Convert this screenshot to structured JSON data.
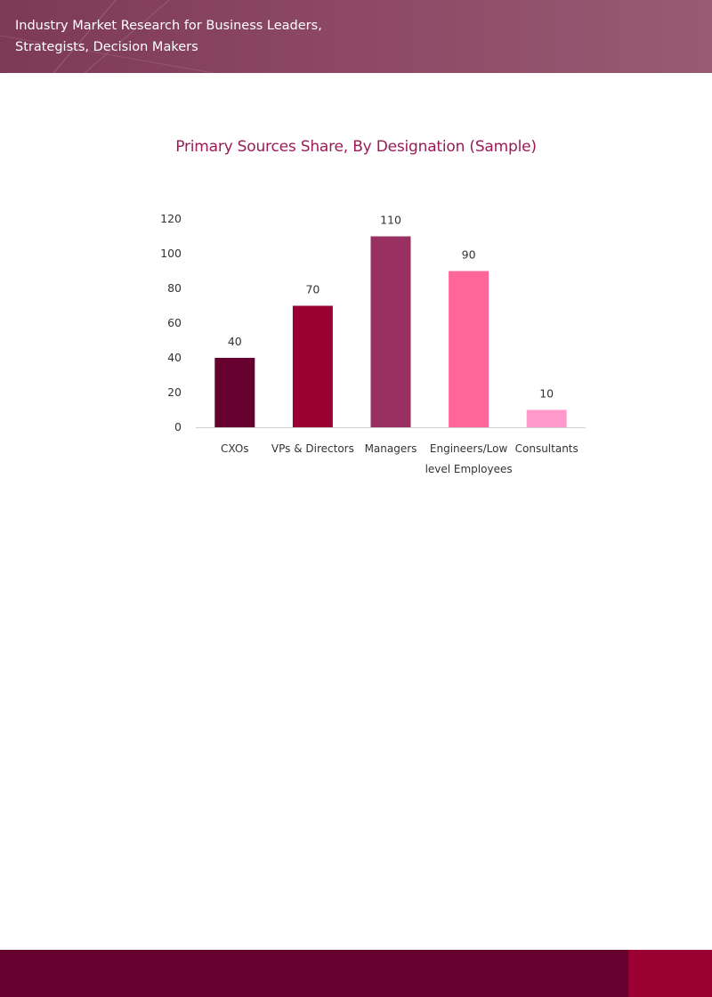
{
  "header": {
    "line1": "Industry Market Research for Business Leaders,",
    "line2": "Strategists, Decision Makers"
  },
  "chart_data": {
    "type": "bar",
    "title": "Primary Sources Share, By Designation (Sample)",
    "xlabel": "",
    "ylabel": "",
    "categories": [
      [
        "CXOs"
      ],
      [
        "VPs & Directors"
      ],
      [
        "Managers"
      ],
      [
        "Engineers/Low",
        "level Employees"
      ],
      [
        "Consultants"
      ]
    ],
    "values": [
      40,
      70,
      110,
      90,
      10
    ],
    "data_labels": [
      "40",
      "70",
      "110",
      "90",
      "10"
    ],
    "ylim": [
      0,
      120
    ],
    "yticks": [
      0,
      20,
      40,
      60,
      80,
      100,
      120
    ],
    "grid": false,
    "legend": "none",
    "bar_colors": [
      "#66002f",
      "#9b0032",
      "#983061",
      "#ff6699",
      "#ff99cc"
    ]
  },
  "colors": {
    "header_bg": "#8e4a66",
    "title": "#9b1b57",
    "footer_bg": "#66002f",
    "footer_accent": "#9b0032"
  }
}
